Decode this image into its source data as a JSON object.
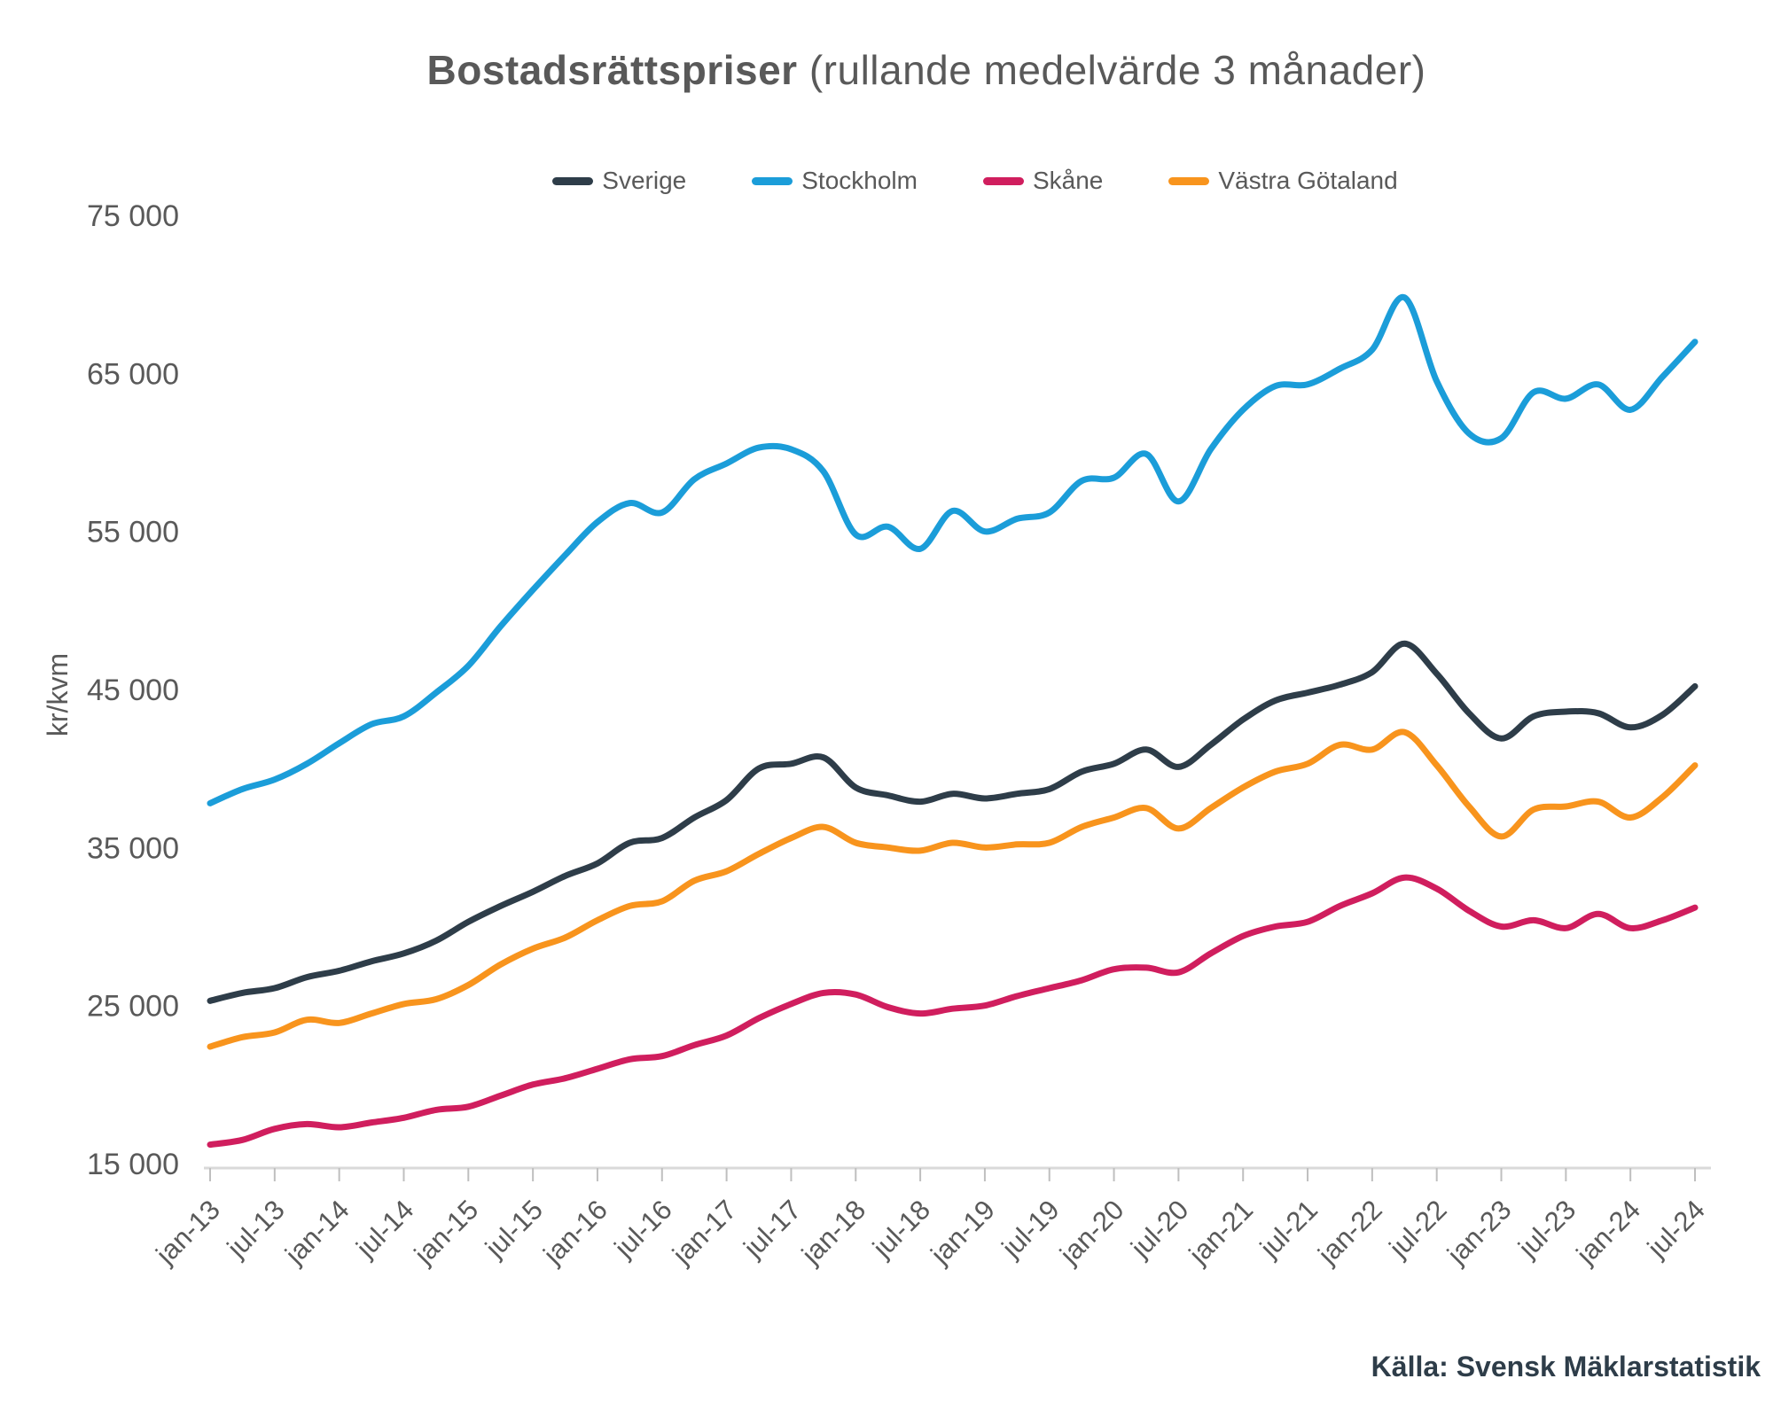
{
  "title": {
    "main": "Bostadsrättspriser",
    "suffix": " (rullande medelvärde 3 månader)"
  },
  "source": {
    "text": "Källa: Svensk Mäklarstatistik"
  },
  "y_axis": {
    "unit_label": "kr/kvm",
    "tick_labels": [
      "75 000",
      "65 000",
      "55 000",
      "45 000",
      "35 000",
      "25 000",
      "15 000"
    ]
  },
  "colors": {
    "text_gray": "#595959",
    "axis_line": "#d9d9d9",
    "tick_mark": "#bfbfbf",
    "source_text": "#2e3d49"
  },
  "chart_data": {
    "type": "line",
    "title": "Bostadsrättspriser (rullande medelvärde 3 månader)",
    "xlabel": "",
    "ylabel": "kr/kvm",
    "ylim": [
      15000,
      75000
    ],
    "y_ticks": [
      15000,
      25000,
      35000,
      45000,
      55000,
      65000,
      75000
    ],
    "grid": false,
    "legend_position": "top",
    "x_tick_labels": [
      "jan-13",
      "jul-13",
      "jan-14",
      "jul-14",
      "jan-15",
      "jul-15",
      "jan-16",
      "jul-16",
      "jan-17",
      "jul-17",
      "jan-18",
      "jul-18",
      "jan-19",
      "jul-19",
      "jan-20",
      "jul-20",
      "jan-21",
      "jul-21",
      "jan-22",
      "jul-22",
      "jan-23",
      "jul-23",
      "jan-24",
      "jul-24"
    ],
    "x_unit": "months since jan-13, quarterly samples",
    "x_months_since_jan13": [
      0,
      3,
      6,
      9,
      12,
      15,
      18,
      21,
      24,
      27,
      30,
      33,
      36,
      39,
      42,
      45,
      48,
      51,
      54,
      57,
      60,
      63,
      66,
      69,
      72,
      75,
      78,
      81,
      84,
      87,
      90,
      93,
      96,
      99,
      102,
      105,
      108,
      111,
      114,
      117,
      120,
      123,
      126,
      129,
      132,
      135,
      138
    ],
    "series": [
      {
        "name": "Sverige",
        "color": "#2e3d49",
        "values": [
          25300,
          25800,
          26100,
          26800,
          27200,
          27800,
          28300,
          29100,
          30300,
          31300,
          32200,
          33200,
          34000,
          35300,
          35600,
          36900,
          38000,
          40000,
          40300,
          40700,
          38800,
          38300,
          37900,
          38400,
          38100,
          38400,
          38700,
          39800,
          40300,
          41200,
          40100,
          41500,
          43100,
          44300,
          44800,
          45300,
          46100,
          47900,
          46000,
          43500,
          41900,
          43300,
          43600,
          43500,
          42600,
          43400,
          45200
        ]
      },
      {
        "name": "Stockholm",
        "color": "#1b9dd9",
        "values": [
          37800,
          38700,
          39300,
          40300,
          41600,
          42800,
          43300,
          44800,
          46500,
          49000,
          51300,
          53500,
          55600,
          56800,
          56200,
          58300,
          59300,
          60300,
          60200,
          58800,
          54800,
          55300,
          53900,
          56300,
          55000,
          55800,
          56200,
          58200,
          58400,
          59900,
          56900,
          60200,
          62700,
          64200,
          64300,
          65300,
          66500,
          69800,
          64500,
          61200,
          60900,
          63800,
          63400,
          64300,
          62700,
          64800,
          67000
        ]
      },
      {
        "name": "Skåne",
        "color": "#d01e5e",
        "values": [
          16200,
          16500,
          17200,
          17500,
          17300,
          17600,
          17900,
          18400,
          18600,
          19300,
          20000,
          20400,
          21000,
          21600,
          21800,
          22500,
          23100,
          24200,
          25100,
          25800,
          25700,
          24900,
          24500,
          24800,
          25000,
          25600,
          26100,
          26600,
          27300,
          27400,
          27100,
          28300,
          29400,
          30000,
          30300,
          31300,
          32100,
          33100,
          32400,
          31000,
          30000,
          30400,
          29900,
          30800,
          29900,
          30400,
          31200
        ]
      },
      {
        "name": "Västra Götaland",
        "color": "#f8941d",
        "values": [
          22400,
          23000,
          23300,
          24100,
          23900,
          24500,
          25100,
          25400,
          26300,
          27600,
          28600,
          29300,
          30400,
          31300,
          31600,
          32900,
          33500,
          34600,
          35600,
          36300,
          35300,
          35000,
          34800,
          35300,
          35000,
          35200,
          35300,
          36300,
          36900,
          37500,
          36200,
          37500,
          38800,
          39800,
          40300,
          41500,
          41200,
          42300,
          40200,
          37600,
          35700,
          37400,
          37600,
          37900,
          36900,
          38200,
          40200
        ]
      }
    ]
  }
}
